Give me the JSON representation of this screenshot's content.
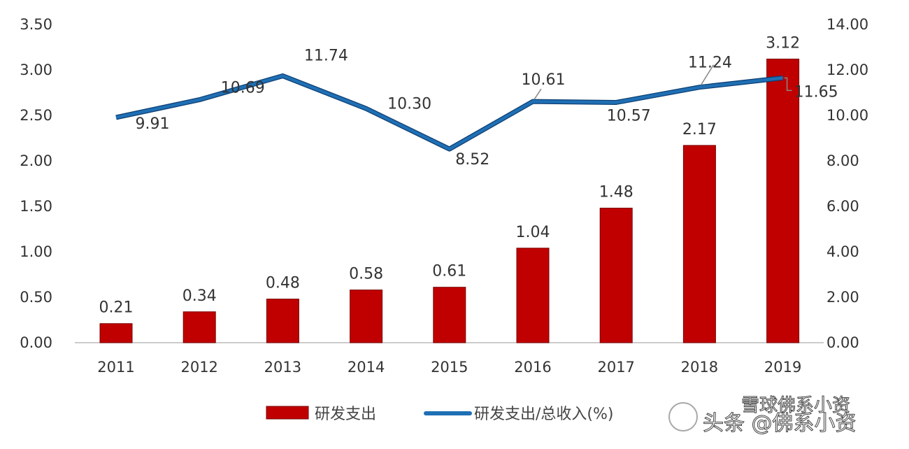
{
  "chart_data": {
    "type": "bar+line",
    "title": "",
    "categories": [
      "2011",
      "2012",
      "2013",
      "2014",
      "2015",
      "2016",
      "2017",
      "2018",
      "2019"
    ],
    "series": [
      {
        "name": "研发支出",
        "type": "bar",
        "axis": "left",
        "color": "#c00000",
        "values": [
          0.21,
          0.34,
          0.48,
          0.58,
          0.61,
          1.04,
          1.48,
          2.17,
          3.12
        ]
      },
      {
        "name": "研发支出/总收入(%)",
        "type": "line",
        "axis": "right",
        "color": "#1f6fb4",
        "values": [
          9.91,
          10.69,
          11.74,
          10.3,
          8.52,
          10.61,
          10.57,
          11.24,
          11.65
        ]
      }
    ],
    "bar_labels": [
      "0.21",
      "0.34",
      "0.48",
      "0.58",
      "0.61",
      "1.04",
      "1.48",
      "2.17",
      "3.12"
    ],
    "line_labels": [
      "9.91",
      "10.69",
      "11.74",
      "10.30",
      "8.52",
      "10.61",
      "10.57",
      "11.24",
      "11.65"
    ],
    "y_left": {
      "lim": [
        0,
        3.5
      ],
      "ticks": [
        "0.00",
        "0.50",
        "1.00",
        "1.50",
        "2.00",
        "2.50",
        "3.00",
        "3.50"
      ]
    },
    "y_right": {
      "lim": [
        0,
        14
      ],
      "ticks": [
        "0.00",
        "2.00",
        "4.00",
        "6.00",
        "8.00",
        "10.00",
        "12.00",
        "14.00"
      ]
    },
    "grid": false,
    "legend_position": "bottom"
  },
  "watermark": {
    "line1": "雪球佛系小资",
    "line2": "头条 @佛系小资"
  }
}
